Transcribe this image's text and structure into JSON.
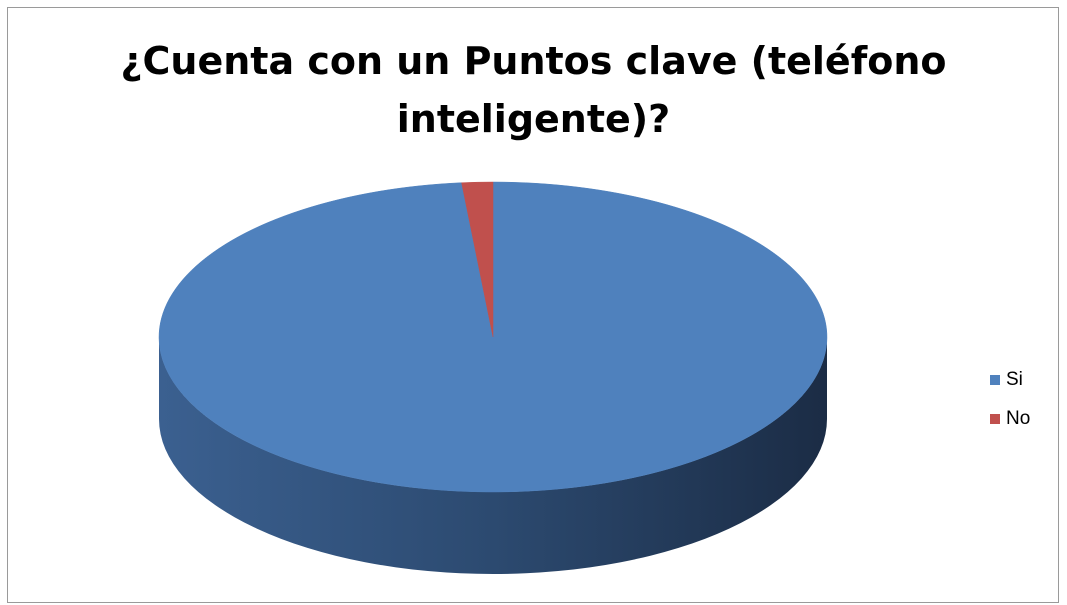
{
  "chart_data": {
    "type": "pie",
    "title": "¿Cuenta con un Puntos clave (teléfono inteligente)?",
    "title_lines": [
      "¿Cuenta con un Puntos clave (teléfono",
      "inteligente)?"
    ],
    "categories": [
      "Si",
      "No"
    ],
    "values": [
      98.5,
      1.5
    ],
    "colors": [
      "#4F81BD",
      "#C0504D"
    ],
    "legend_position": "right",
    "style": "3d"
  }
}
